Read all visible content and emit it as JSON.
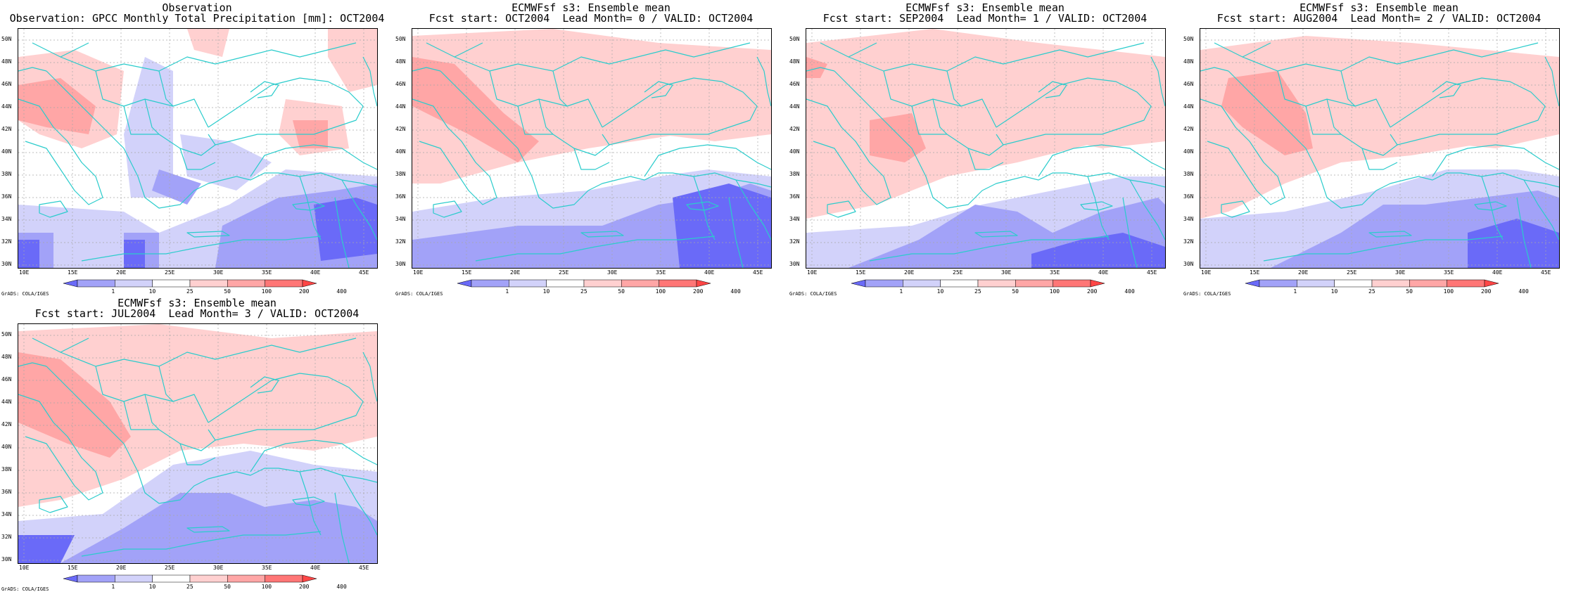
{
  "panels": [
    {
      "title": "Observation",
      "subtitle": "Observation: GPCC Monthly Total Precipitation [mm]: OCT2004"
    },
    {
      "title": "ECMWFsf s3: Ensemble mean",
      "subtitle": "Fcst start: OCT2004  Lead Month= 0 / VALID: OCT2004"
    },
    {
      "title": "ECMWFsf s3: Ensemble mean",
      "subtitle": "Fcst start: SEP2004  Lead Month= 1 / VALID: OCT2004"
    },
    {
      "title": "ECMWFsf s3: Ensemble mean",
      "subtitle": "Fcst start: AUG2004  Lead Month= 2 / VALID: OCT2004"
    },
    {
      "title": "ECMWFsf s3: Ensemble mean",
      "subtitle": "Fcst start: JUL2004  Lead Month= 3 / VALID: OCT2004"
    }
  ],
  "lat_labels": [
    "50N",
    "48N",
    "46N",
    "44N",
    "42N",
    "40N",
    "38N",
    "36N",
    "34N",
    "32N",
    "30N"
  ],
  "lon_labels": [
    "10E",
    "15E",
    "20E",
    "25E",
    "30E",
    "35E",
    "40E",
    "45E"
  ],
  "colorbar": {
    "levels": [
      "1",
      "10",
      "25",
      "50",
      "100",
      "200",
      "400"
    ],
    "colors": [
      "#6a6af8",
      "#a2a2f8",
      "#d2d2fa",
      "#ffffff",
      "#ffd0d0",
      "#ffa6a6",
      "#ff7676",
      "#ff4646"
    ]
  },
  "credit": "GrADS: COLA/IGES",
  "colors": {
    "coast": "#2bcccc",
    "grid": "#a8a8a8",
    "blue_strong": "#6a6af8",
    "blue_mid": "#a2a2f8",
    "blue_light": "#d2d2fa",
    "red_light": "#ffd0d0",
    "red_mid": "#ffa6a6",
    "red_strong": "#ff7676"
  }
}
